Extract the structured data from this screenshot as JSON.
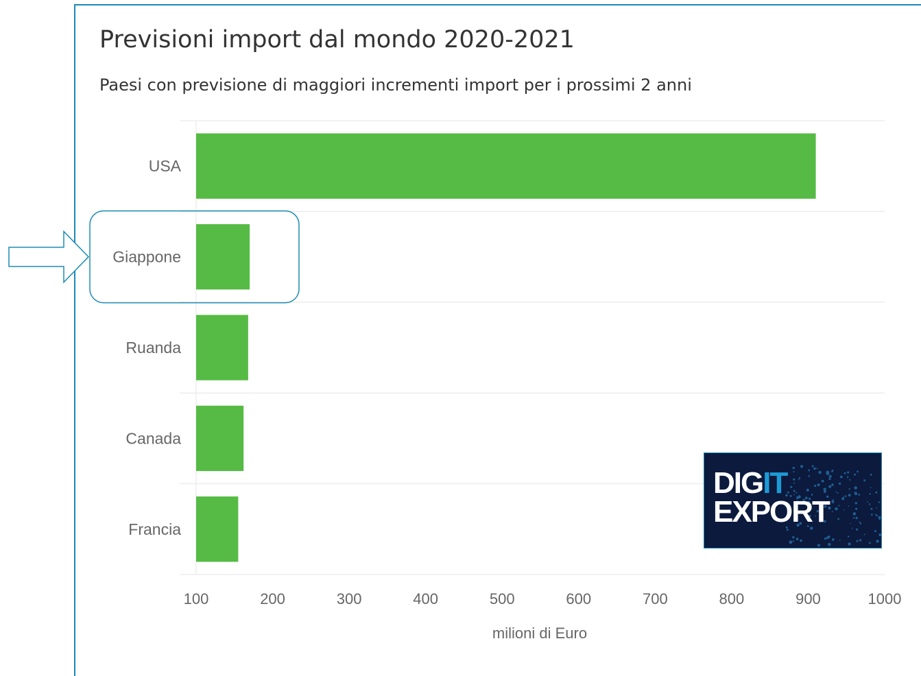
{
  "chart_data": {
    "type": "bar",
    "orientation": "horizontal",
    "title": "Previsioni import dal mondo 2020-2021",
    "subtitle": "Paesi con previsione di maggiori incrementi import per i prossimi 2 anni",
    "categories": [
      "USA",
      "Giappone",
      "Ruanda",
      "Canada",
      "Francia"
    ],
    "values": [
      910,
      170,
      168,
      162,
      155
    ],
    "xlabel": "milioni di Euro",
    "ylabel": "",
    "xlim": [
      100,
      1000
    ],
    "ticks": [
      100,
      200,
      300,
      400,
      500,
      600,
      700,
      800,
      900,
      1000
    ],
    "tick_labels": [
      "100",
      "200",
      "300",
      "400",
      "500",
      "600",
      "700",
      "800",
      "900",
      "1000"
    ],
    "grid": true,
    "bar_color": "#55bb44",
    "highlighted_category": "Giappone"
  },
  "annotation": {
    "highlight_color": "#1b8bb4"
  },
  "logo": {
    "text_part1": "DIG",
    "text_accent": "IT",
    "text_part2": "EXPORT",
    "background": "#0b1a3d",
    "border": "#1b8bb4"
  }
}
